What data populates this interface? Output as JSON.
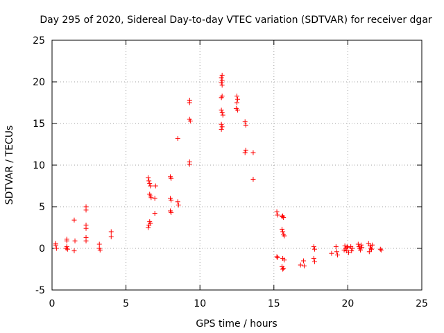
{
  "chart_data": {
    "type": "scatter",
    "title": "Day 295 of 2020, Sidereal Day-to-day VTEC variation (SDTVAR) for receiver dgar",
    "xlabel": "GPS time / hours",
    "ylabel": "SDTVAR / TECUs",
    "xlim": [
      0,
      25
    ],
    "ylim": [
      -5,
      25
    ],
    "xticks": [
      0,
      5,
      10,
      15,
      20,
      25
    ],
    "yticks": [
      -5,
      0,
      5,
      10,
      15,
      20,
      25
    ],
    "grid": true,
    "marker": "plus",
    "color": "#ff0000",
    "series": [
      {
        "name": "SDTVAR",
        "points": [
          [
            0.25,
            0.6
          ],
          [
            0.25,
            0.4
          ],
          [
            0.3,
            0.0
          ],
          [
            1.0,
            1.1
          ],
          [
            1.0,
            0.9
          ],
          [
            1.0,
            0.2
          ],
          [
            1.05,
            -0.1
          ],
          [
            0.95,
            0.0
          ],
          [
            1.5,
            3.4
          ],
          [
            1.55,
            0.9
          ],
          [
            1.5,
            -0.3
          ],
          [
            2.3,
            5.0
          ],
          [
            2.3,
            4.6
          ],
          [
            2.3,
            2.8
          ],
          [
            2.3,
            2.4
          ],
          [
            2.3,
            1.3
          ],
          [
            2.3,
            0.9
          ],
          [
            3.2,
            0.5
          ],
          [
            3.2,
            0.0
          ],
          [
            3.25,
            -0.2
          ],
          [
            4.0,
            2.0
          ],
          [
            4.0,
            1.4
          ],
          [
            6.5,
            8.5
          ],
          [
            6.55,
            8.1
          ],
          [
            6.6,
            7.8
          ],
          [
            6.65,
            7.5
          ],
          [
            7.0,
            7.5
          ],
          [
            6.6,
            6.5
          ],
          [
            6.65,
            6.3
          ],
          [
            6.7,
            6.1
          ],
          [
            6.95,
            6.0
          ],
          [
            6.6,
            3.2
          ],
          [
            6.65,
            3.0
          ],
          [
            6.55,
            2.8
          ],
          [
            6.5,
            2.5
          ],
          [
            6.95,
            4.2
          ],
          [
            8.0,
            8.6
          ],
          [
            8.05,
            8.4
          ],
          [
            8.0,
            6.0
          ],
          [
            8.05,
            5.8
          ],
          [
            8.0,
            4.5
          ],
          [
            8.05,
            4.3
          ],
          [
            8.5,
            13.2
          ],
          [
            8.5,
            5.6
          ],
          [
            8.55,
            5.2
          ],
          [
            9.3,
            17.8
          ],
          [
            9.3,
            17.5
          ],
          [
            9.3,
            15.5
          ],
          [
            9.35,
            15.3
          ],
          [
            9.3,
            10.4
          ],
          [
            9.3,
            10.1
          ],
          [
            11.5,
            20.8
          ],
          [
            11.45,
            20.5
          ],
          [
            11.5,
            20.2
          ],
          [
            11.45,
            19.9
          ],
          [
            11.5,
            19.6
          ],
          [
            11.5,
            18.3
          ],
          [
            11.45,
            18.1
          ],
          [
            11.45,
            16.6
          ],
          [
            11.5,
            16.3
          ],
          [
            11.55,
            16.0
          ],
          [
            11.45,
            14.9
          ],
          [
            11.5,
            14.6
          ],
          [
            11.45,
            14.3
          ],
          [
            12.5,
            18.3
          ],
          [
            12.55,
            17.9
          ],
          [
            12.5,
            17.5
          ],
          [
            12.45,
            16.8
          ],
          [
            12.55,
            16.6
          ],
          [
            13.05,
            15.2
          ],
          [
            13.1,
            14.8
          ],
          [
            13.1,
            11.8
          ],
          [
            13.05,
            11.5
          ],
          [
            13.6,
            11.5
          ],
          [
            13.6,
            8.3
          ],
          [
            15.2,
            4.4
          ],
          [
            15.25,
            4.0
          ],
          [
            15.6,
            3.9
          ],
          [
            15.65,
            3.7
          ],
          [
            15.55,
            3.8
          ],
          [
            15.55,
            2.3
          ],
          [
            15.6,
            2.0
          ],
          [
            15.65,
            1.7
          ],
          [
            15.7,
            1.5
          ],
          [
            15.2,
            -1.0
          ],
          [
            15.25,
            -1.1
          ],
          [
            15.6,
            -1.2
          ],
          [
            15.7,
            -1.4
          ],
          [
            15.55,
            -2.2
          ],
          [
            15.6,
            -2.5
          ],
          [
            15.65,
            -2.4
          ],
          [
            16.8,
            -2.0
          ],
          [
            17.0,
            -1.5
          ],
          [
            17.05,
            -2.1
          ],
          [
            17.7,
            0.2
          ],
          [
            17.75,
            -0.1
          ],
          [
            17.7,
            -1.2
          ],
          [
            17.75,
            -1.6
          ],
          [
            18.9,
            -0.6
          ],
          [
            19.2,
            0.2
          ],
          [
            19.25,
            -0.4
          ],
          [
            19.3,
            -0.8
          ],
          [
            19.8,
            0.3
          ],
          [
            19.85,
            0.0
          ],
          [
            19.9,
            -0.3
          ],
          [
            20.0,
            0.1
          ],
          [
            20.05,
            -0.5
          ],
          [
            19.75,
            -0.2
          ],
          [
            19.95,
            0.2
          ],
          [
            20.2,
            0.2
          ],
          [
            20.25,
            -0.3
          ],
          [
            20.3,
            0.0
          ],
          [
            20.7,
            0.5
          ],
          [
            20.75,
            0.2
          ],
          [
            20.8,
            0.0
          ],
          [
            20.85,
            -0.2
          ],
          [
            20.9,
            0.4
          ],
          [
            20.95,
            0.1
          ],
          [
            21.4,
            0.6
          ],
          [
            21.5,
            0.3
          ],
          [
            21.55,
            0.0
          ],
          [
            21.45,
            -0.4
          ],
          [
            21.6,
            -0.1
          ],
          [
            21.65,
            0.4
          ],
          [
            22.2,
            -0.1
          ],
          [
            22.25,
            -0.2
          ]
        ]
      }
    ]
  }
}
